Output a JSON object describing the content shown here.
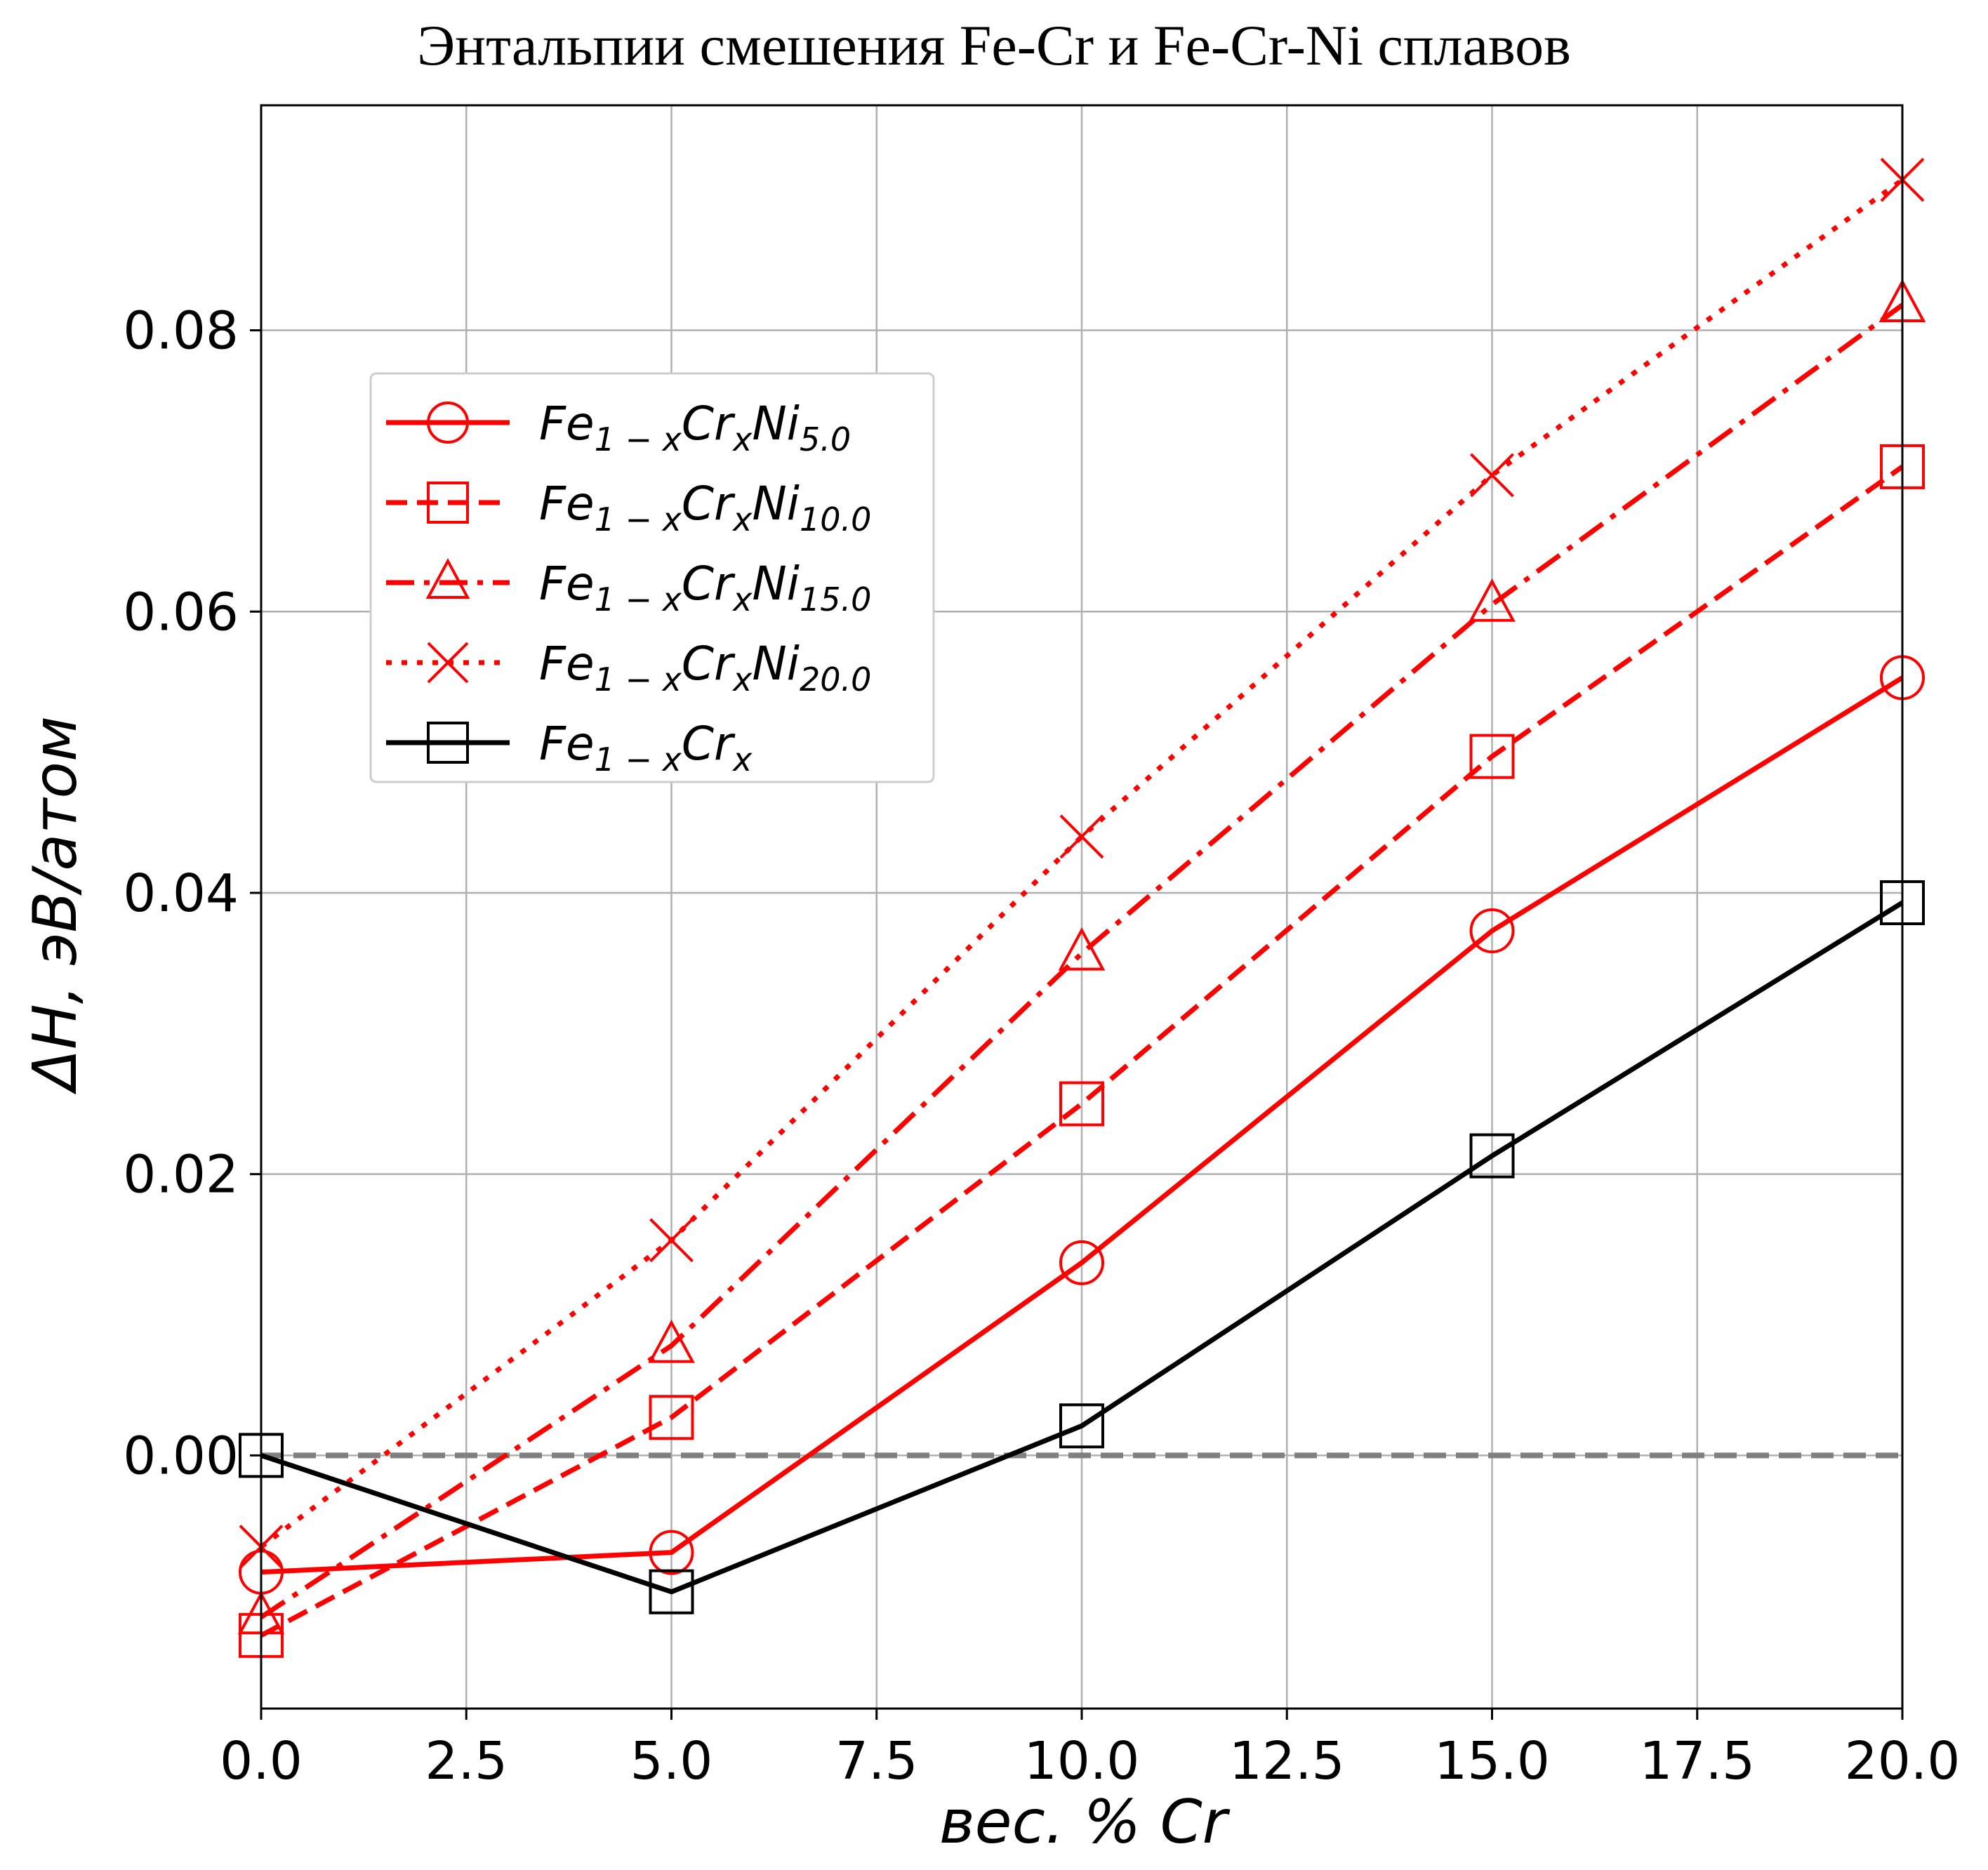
{
  "chart_data": {
    "type": "line",
    "title": "Энтальпии смешения Fe-Cr и Fe-Cr-Ni сплавов",
    "xlabel": "вес.  % Cr",
    "ylabel": "ΔH, эВ/атом",
    "xlim": [
      0,
      20
    ],
    "ylim": [
      -0.018,
      0.096
    ],
    "x_ticks": [
      "0.0",
      "2.5",
      "5.0",
      "7.5",
      "10.0",
      "12.5",
      "15.0",
      "17.5",
      "20.0"
    ],
    "y_ticks": [
      "0.00",
      "0.02",
      "0.04",
      "0.06",
      "0.08"
    ],
    "grid": true,
    "legend_position": "upper-left",
    "reference_line": {
      "y": 0,
      "color": "#808080",
      "style": "dashed"
    },
    "x": [
      0,
      5,
      10,
      15,
      20
    ],
    "series": [
      {
        "name": "Fe1−xCrxNi5.0",
        "label": {
          "base": "Fe",
          "sub1": "1 − x",
          "mid": "Cr",
          "sub2": "x",
          "tail": "Ni",
          "sub3": "5.0"
        },
        "color": "#ff0000",
        "dash": "solid",
        "marker": "circle",
        "values": [
          -0.0083,
          -0.0069,
          0.0137,
          0.0373,
          0.0553
        ]
      },
      {
        "name": "Fe1−xCrxNi10.0",
        "label": {
          "base": "Fe",
          "sub1": "1 − x",
          "mid": "Cr",
          "sub2": "x",
          "tail": "Ni",
          "sub3": "10.0"
        },
        "color": "#ff0000",
        "dash": "dashed",
        "marker": "square",
        "values": [
          -0.0128,
          0.0027,
          0.025,
          0.0497,
          0.0703
        ]
      },
      {
        "name": "Fe1−xCrxNi15.0",
        "label": {
          "base": "Fe",
          "sub1": "1 − x",
          "mid": "Cr",
          "sub2": "x",
          "tail": "Ni",
          "sub3": "15.0"
        },
        "color": "#ff0000",
        "dash": "dashdot",
        "marker": "triangle",
        "values": [
          -0.0115,
          0.0078,
          0.0357,
          0.0605,
          0.0818
        ]
      },
      {
        "name": "Fe1−xCrxNi20.0",
        "label": {
          "base": "Fe",
          "sub1": "1 − x",
          "mid": "Cr",
          "sub2": "x",
          "tail": "Ni",
          "sub3": "20.0"
        },
        "color": "#ff0000",
        "dash": "dotted",
        "marker": "x",
        "values": [
          -0.0065,
          0.0153,
          0.044,
          0.0697,
          0.0907
        ]
      },
      {
        "name": "Fe1−xCrx",
        "label": {
          "base": "Fe",
          "sub1": "1 − x",
          "mid": "Cr",
          "sub2": "x",
          "tail": "",
          "sub3": ""
        },
        "color": "#000000",
        "dash": "solid",
        "marker": "square",
        "values": [
          0.0,
          -0.0097,
          0.0021,
          0.0213,
          0.0393
        ]
      }
    ]
  }
}
